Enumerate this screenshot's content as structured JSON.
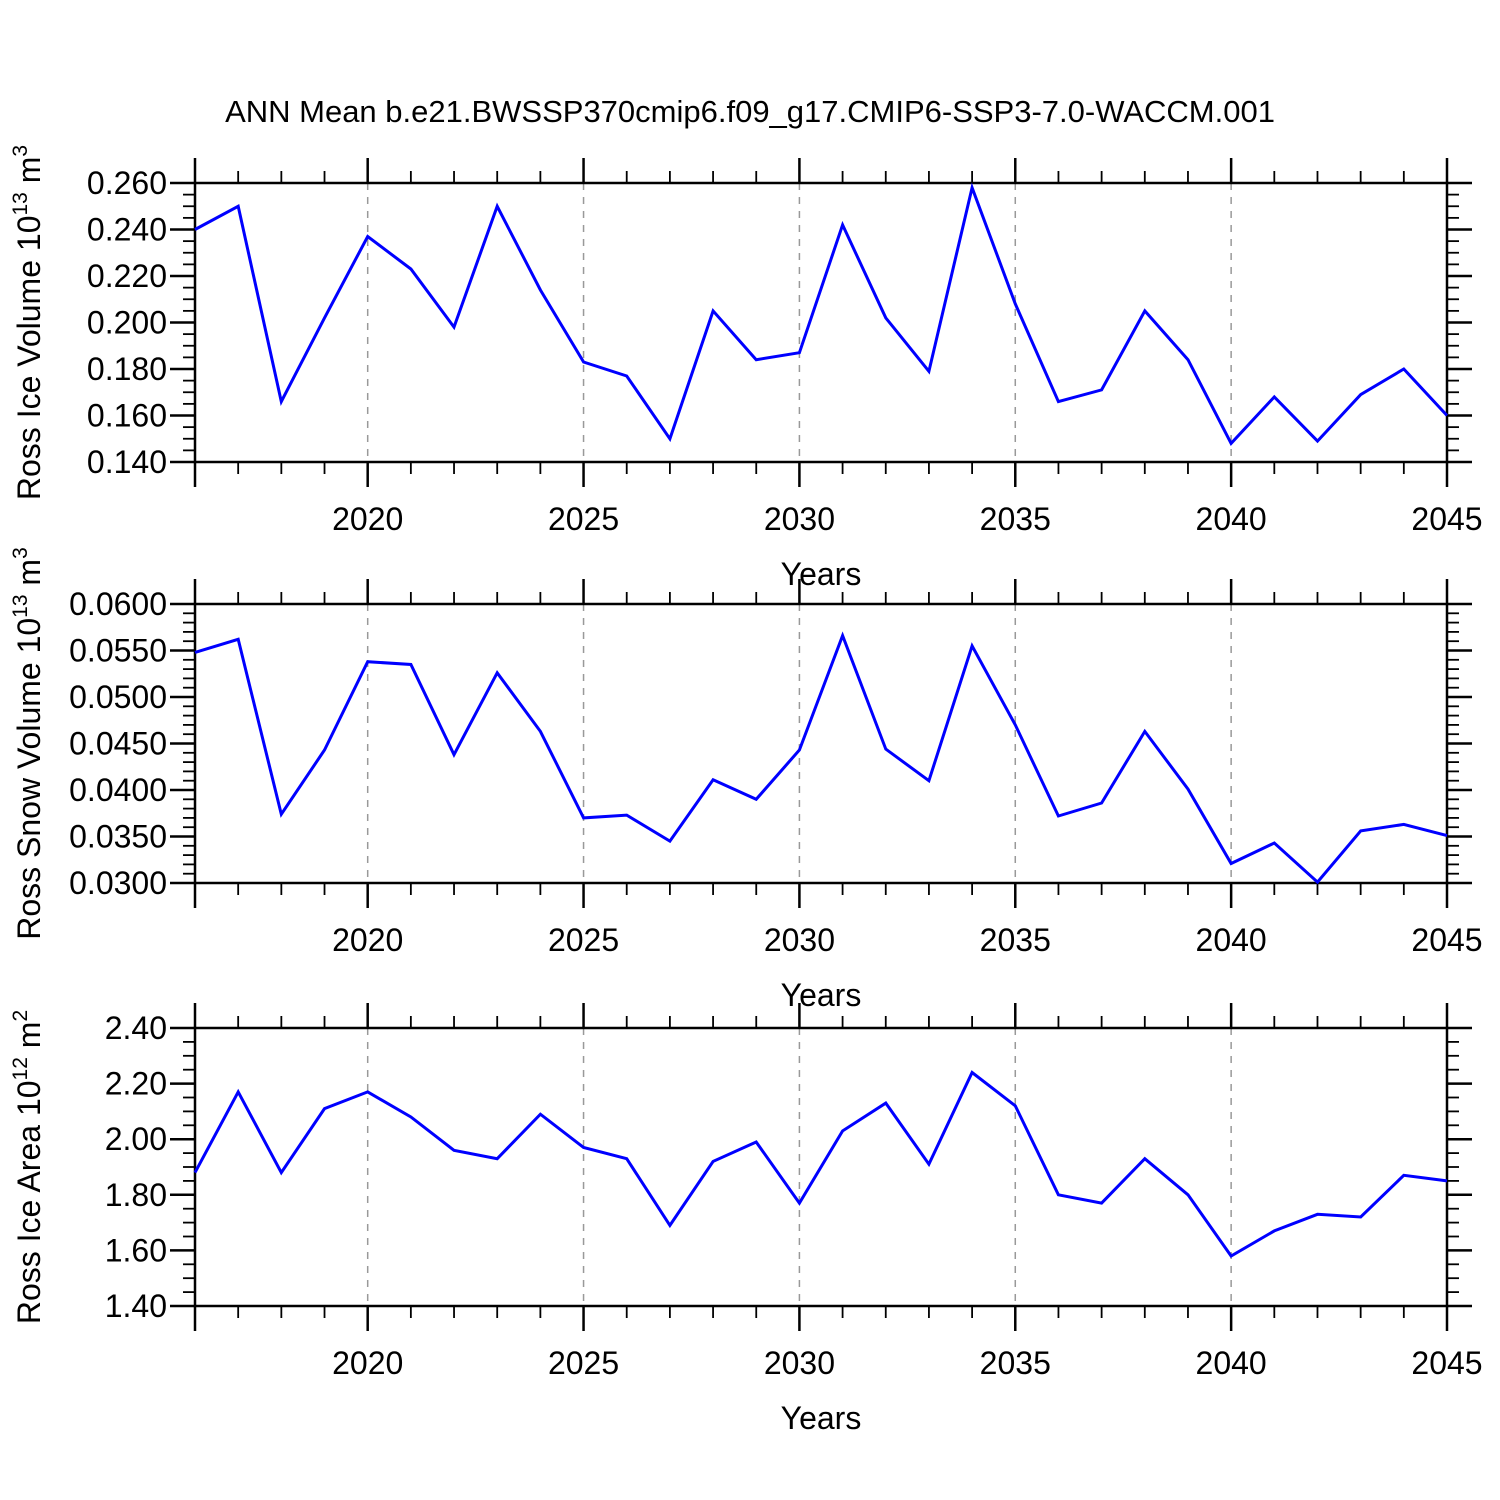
{
  "figure": {
    "title": "ANN Mean b.e21.BWSSP370cmip6.f09_g17.CMIP6-SSP3-7.0-WACCM.001",
    "background": "#ffffff",
    "line_color": "#0000ff",
    "grid_color": "#999999",
    "axis_color": "#000000",
    "legend": "none"
  },
  "chart_data": [
    {
      "type": "line",
      "id": "ross-ice-volume",
      "ylabel_text": "Ross Ice Volume 10^13 m^3",
      "ylabel_parts": [
        {
          "t": "Ross Ice Volume 10"
        },
        {
          "sup": "13"
        },
        {
          "t": " m"
        },
        {
          "sup": "3"
        }
      ],
      "xlabel": "Years",
      "x": [
        2016,
        2017,
        2018,
        2019,
        2020,
        2021,
        2022,
        2023,
        2024,
        2025,
        2026,
        2027,
        2028,
        2029,
        2030,
        2031,
        2032,
        2033,
        2034,
        2035,
        2036,
        2037,
        2038,
        2039,
        2040,
        2041,
        2042,
        2043,
        2044,
        2045
      ],
      "values": [
        0.24,
        0.25,
        0.166,
        0.202,
        0.237,
        0.223,
        0.198,
        0.25,
        0.214,
        0.183,
        0.177,
        0.15,
        0.205,
        0.184,
        0.187,
        0.242,
        0.202,
        0.179,
        0.258,
        0.208,
        0.166,
        0.171,
        0.205,
        0.184,
        0.148,
        0.168,
        0.149,
        0.169,
        0.18,
        0.16
      ],
      "ylim": [
        0.14,
        0.26
      ],
      "ytick_step": 0.02,
      "yminor_step": 0.005,
      "ytick_decimals": 3,
      "xlim": [
        2016,
        2045
      ],
      "xticks": [
        2020,
        2025,
        2030,
        2035,
        2040,
        2045
      ],
      "xminor_step": 1,
      "grid_vertical_dashed": true,
      "grid_horizontal": false
    },
    {
      "type": "line",
      "id": "ross-snow-volume",
      "ylabel_text": "Ross Snow Volume 10^13 m^3",
      "ylabel_parts": [
        {
          "t": "Ross Snow Volume 10"
        },
        {
          "sup": "13"
        },
        {
          "t": " m"
        },
        {
          "sup": "3"
        }
      ],
      "xlabel": "Years",
      "x": [
        2016,
        2017,
        2018,
        2019,
        2020,
        2021,
        2022,
        2023,
        2024,
        2025,
        2026,
        2027,
        2028,
        2029,
        2030,
        2031,
        2032,
        2033,
        2034,
        2035,
        2036,
        2037,
        2038,
        2039,
        2040,
        2041,
        2042,
        2043,
        2044,
        2045
      ],
      "values": [
        0.0548,
        0.0562,
        0.0374,
        0.0443,
        0.0538,
        0.0535,
        0.0438,
        0.0526,
        0.0463,
        0.037,
        0.0373,
        0.0345,
        0.0411,
        0.039,
        0.0443,
        0.0566,
        0.0444,
        0.041,
        0.0555,
        0.047,
        0.0372,
        0.0386,
        0.0463,
        0.0401,
        0.0321,
        0.0343,
        0.0301,
        0.0356,
        0.0363,
        0.0351
      ],
      "ylim": [
        0.03,
        0.06
      ],
      "ytick_step": 0.005,
      "yminor_step": 0.001,
      "ytick_decimals": 4,
      "xlim": [
        2016,
        2045
      ],
      "xticks": [
        2020,
        2025,
        2030,
        2035,
        2040,
        2045
      ],
      "xminor_step": 1,
      "grid_vertical_dashed": true,
      "grid_horizontal": false
    },
    {
      "type": "line",
      "id": "ross-ice-area",
      "ylabel_text": "Ross Ice Area 10^12 m^2",
      "ylabel_parts": [
        {
          "t": "Ross Ice Area 10"
        },
        {
          "sup": "12"
        },
        {
          "t": " m"
        },
        {
          "sup": "2"
        }
      ],
      "xlabel": "Years",
      "x": [
        2016,
        2017,
        2018,
        2019,
        2020,
        2021,
        2022,
        2023,
        2024,
        2025,
        2026,
        2027,
        2028,
        2029,
        2030,
        2031,
        2032,
        2033,
        2034,
        2035,
        2036,
        2037,
        2038,
        2039,
        2040,
        2041,
        2042,
        2043,
        2044,
        2045
      ],
      "values": [
        1.88,
        2.17,
        1.88,
        2.11,
        2.17,
        2.08,
        1.96,
        1.93,
        2.09,
        1.97,
        1.93,
        1.69,
        1.92,
        1.99,
        1.77,
        2.03,
        2.13,
        1.91,
        2.24,
        2.12,
        1.8,
        1.77,
        1.93,
        1.8,
        1.58,
        1.67,
        1.73,
        1.72,
        1.87,
        1.85
      ],
      "ylim": [
        1.4,
        2.4
      ],
      "ytick_step": 0.2,
      "yminor_step": 0.05,
      "ytick_decimals": 2,
      "xlim": [
        2016,
        2045
      ],
      "xticks": [
        2020,
        2025,
        2030,
        2035,
        2040,
        2045
      ],
      "xminor_step": 1,
      "grid_vertical_dashed": true,
      "grid_horizontal": false
    }
  ]
}
